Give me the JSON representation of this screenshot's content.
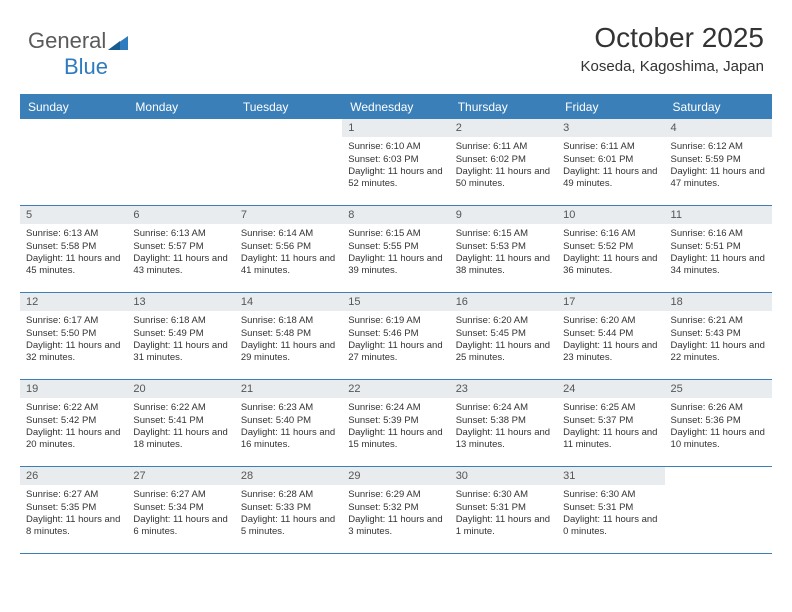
{
  "logo": {
    "text1": "General",
    "text2": "Blue"
  },
  "header": {
    "month": "October 2025",
    "location": "Koseda, Kagoshima, Japan"
  },
  "colors": {
    "header_bg": "#3b7fb8",
    "header_text": "#ffffff",
    "daynum_bg": "#e9ecee",
    "border": "#3b7fb8",
    "text": "#333333",
    "logo_gray": "#5a5a5a",
    "logo_blue": "#2f7bbf"
  },
  "weekdays": [
    "Sunday",
    "Monday",
    "Tuesday",
    "Wednesday",
    "Thursday",
    "Friday",
    "Saturday"
  ],
  "weeks": [
    [
      {
        "n": "",
        "lines": []
      },
      {
        "n": "",
        "lines": []
      },
      {
        "n": "",
        "lines": []
      },
      {
        "n": "1",
        "lines": [
          "Sunrise: 6:10 AM",
          "Sunset: 6:03 PM",
          "Daylight: 11 hours and 52 minutes."
        ]
      },
      {
        "n": "2",
        "lines": [
          "Sunrise: 6:11 AM",
          "Sunset: 6:02 PM",
          "Daylight: 11 hours and 50 minutes."
        ]
      },
      {
        "n": "3",
        "lines": [
          "Sunrise: 6:11 AM",
          "Sunset: 6:01 PM",
          "Daylight: 11 hours and 49 minutes."
        ]
      },
      {
        "n": "4",
        "lines": [
          "Sunrise: 6:12 AM",
          "Sunset: 5:59 PM",
          "Daylight: 11 hours and 47 minutes."
        ]
      }
    ],
    [
      {
        "n": "5",
        "lines": [
          "Sunrise: 6:13 AM",
          "Sunset: 5:58 PM",
          "Daylight: 11 hours and 45 minutes."
        ]
      },
      {
        "n": "6",
        "lines": [
          "Sunrise: 6:13 AM",
          "Sunset: 5:57 PM",
          "Daylight: 11 hours and 43 minutes."
        ]
      },
      {
        "n": "7",
        "lines": [
          "Sunrise: 6:14 AM",
          "Sunset: 5:56 PM",
          "Daylight: 11 hours and 41 minutes."
        ]
      },
      {
        "n": "8",
        "lines": [
          "Sunrise: 6:15 AM",
          "Sunset: 5:55 PM",
          "Daylight: 11 hours and 39 minutes."
        ]
      },
      {
        "n": "9",
        "lines": [
          "Sunrise: 6:15 AM",
          "Sunset: 5:53 PM",
          "Daylight: 11 hours and 38 minutes."
        ]
      },
      {
        "n": "10",
        "lines": [
          "Sunrise: 6:16 AM",
          "Sunset: 5:52 PM",
          "Daylight: 11 hours and 36 minutes."
        ]
      },
      {
        "n": "11",
        "lines": [
          "Sunrise: 6:16 AM",
          "Sunset: 5:51 PM",
          "Daylight: 11 hours and 34 minutes."
        ]
      }
    ],
    [
      {
        "n": "12",
        "lines": [
          "Sunrise: 6:17 AM",
          "Sunset: 5:50 PM",
          "Daylight: 11 hours and 32 minutes."
        ]
      },
      {
        "n": "13",
        "lines": [
          "Sunrise: 6:18 AM",
          "Sunset: 5:49 PM",
          "Daylight: 11 hours and 31 minutes."
        ]
      },
      {
        "n": "14",
        "lines": [
          "Sunrise: 6:18 AM",
          "Sunset: 5:48 PM",
          "Daylight: 11 hours and 29 minutes."
        ]
      },
      {
        "n": "15",
        "lines": [
          "Sunrise: 6:19 AM",
          "Sunset: 5:46 PM",
          "Daylight: 11 hours and 27 minutes."
        ]
      },
      {
        "n": "16",
        "lines": [
          "Sunrise: 6:20 AM",
          "Sunset: 5:45 PM",
          "Daylight: 11 hours and 25 minutes."
        ]
      },
      {
        "n": "17",
        "lines": [
          "Sunrise: 6:20 AM",
          "Sunset: 5:44 PM",
          "Daylight: 11 hours and 23 minutes."
        ]
      },
      {
        "n": "18",
        "lines": [
          "Sunrise: 6:21 AM",
          "Sunset: 5:43 PM",
          "Daylight: 11 hours and 22 minutes."
        ]
      }
    ],
    [
      {
        "n": "19",
        "lines": [
          "Sunrise: 6:22 AM",
          "Sunset: 5:42 PM",
          "Daylight: 11 hours and 20 minutes."
        ]
      },
      {
        "n": "20",
        "lines": [
          "Sunrise: 6:22 AM",
          "Sunset: 5:41 PM",
          "Daylight: 11 hours and 18 minutes."
        ]
      },
      {
        "n": "21",
        "lines": [
          "Sunrise: 6:23 AM",
          "Sunset: 5:40 PM",
          "Daylight: 11 hours and 16 minutes."
        ]
      },
      {
        "n": "22",
        "lines": [
          "Sunrise: 6:24 AM",
          "Sunset: 5:39 PM",
          "Daylight: 11 hours and 15 minutes."
        ]
      },
      {
        "n": "23",
        "lines": [
          "Sunrise: 6:24 AM",
          "Sunset: 5:38 PM",
          "Daylight: 11 hours and 13 minutes."
        ]
      },
      {
        "n": "24",
        "lines": [
          "Sunrise: 6:25 AM",
          "Sunset: 5:37 PM",
          "Daylight: 11 hours and 11 minutes."
        ]
      },
      {
        "n": "25",
        "lines": [
          "Sunrise: 6:26 AM",
          "Sunset: 5:36 PM",
          "Daylight: 11 hours and 10 minutes."
        ]
      }
    ],
    [
      {
        "n": "26",
        "lines": [
          "Sunrise: 6:27 AM",
          "Sunset: 5:35 PM",
          "Daylight: 11 hours and 8 minutes."
        ]
      },
      {
        "n": "27",
        "lines": [
          "Sunrise: 6:27 AM",
          "Sunset: 5:34 PM",
          "Daylight: 11 hours and 6 minutes."
        ]
      },
      {
        "n": "28",
        "lines": [
          "Sunrise: 6:28 AM",
          "Sunset: 5:33 PM",
          "Daylight: 11 hours and 5 minutes."
        ]
      },
      {
        "n": "29",
        "lines": [
          "Sunrise: 6:29 AM",
          "Sunset: 5:32 PM",
          "Daylight: 11 hours and 3 minutes."
        ]
      },
      {
        "n": "30",
        "lines": [
          "Sunrise: 6:30 AM",
          "Sunset: 5:31 PM",
          "Daylight: 11 hours and 1 minute."
        ]
      },
      {
        "n": "31",
        "lines": [
          "Sunrise: 6:30 AM",
          "Sunset: 5:31 PM",
          "Daylight: 11 hours and 0 minutes."
        ]
      },
      {
        "n": "",
        "lines": []
      }
    ]
  ]
}
